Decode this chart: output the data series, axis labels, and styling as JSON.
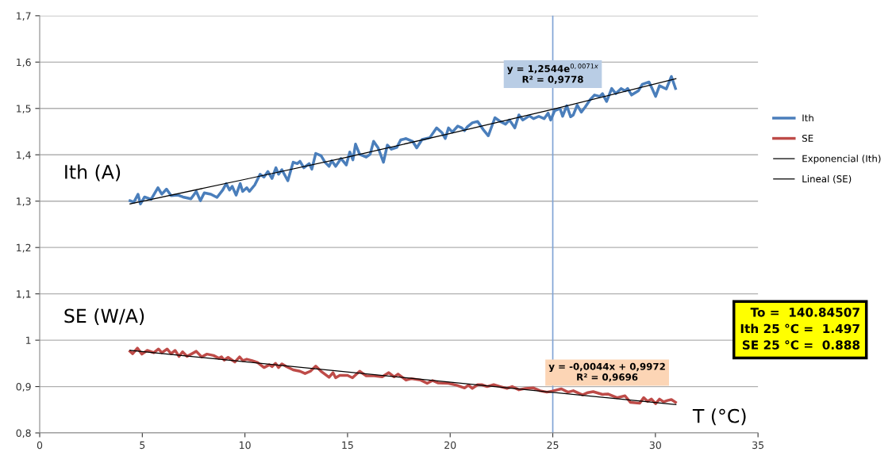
{
  "chart_data": {
    "type": "line",
    "xlabel": "T (°C)",
    "xlim": [
      0,
      35
    ],
    "xticks": [
      0,
      5,
      10,
      15,
      20,
      25,
      30,
      35
    ],
    "ylim": [
      0.8,
      1.7
    ],
    "yticks": [
      {
        "value": 0.8,
        "label": "0,8"
      },
      {
        "value": 0.9,
        "label": "0,9"
      },
      1,
      {
        "value": 1.1,
        "label": "1,1"
      },
      {
        "value": 1.2,
        "label": "1,2"
      },
      {
        "value": 1.3,
        "label": "1,3"
      },
      {
        "value": 1.4,
        "label": "1,4"
      },
      {
        "value": 1.5,
        "label": "1,5"
      },
      {
        "value": 1.6,
        "label": "1,6"
      },
      {
        "value": 1.7,
        "label": "1,7"
      }
    ],
    "grid": "y",
    "legend": "right",
    "marker": "none",
    "series": [
      {
        "name": "Ith",
        "color": "#4a7ebb",
        "x": [
          4.4,
          4.59,
          4.79,
          4.91,
          5.11,
          5.43,
          5.76,
          5.95,
          6.18,
          6.4,
          6.73,
          6.98,
          7.37,
          7.63,
          7.83,
          8.02,
          8.34,
          8.64,
          8.92,
          9.09,
          9.25,
          9.38,
          9.57,
          9.77,
          9.89,
          10.09,
          10.22,
          10.48,
          10.74,
          10.93,
          11.12,
          11.32,
          11.51,
          11.64,
          11.8,
          12.09,
          12.35,
          12.55,
          12.68,
          12.87,
          13.13,
          13.26,
          13.45,
          13.71,
          13.9,
          14.1,
          14.23,
          14.42,
          14.68,
          14.94,
          15.11,
          15.26,
          15.39,
          15.59,
          15.91,
          16.1,
          16.27,
          16.49,
          16.75,
          16.94,
          17.14,
          17.4,
          17.59,
          17.85,
          18.17,
          18.37,
          18.63,
          19.01,
          19.34,
          19.6,
          19.76,
          19.92,
          20.11,
          20.37,
          20.57,
          20.7,
          20.83,
          21.08,
          21.34,
          21.6,
          21.86,
          22.18,
          22.44,
          22.7,
          22.89,
          23.15,
          23.35,
          23.54,
          23.86,
          24.06,
          24.32,
          24.58,
          24.77,
          24.9,
          25.09,
          25.35,
          25.48,
          25.68,
          25.87,
          26.0,
          26.19,
          26.39,
          26.58,
          26.84,
          27.03,
          27.29,
          27.42,
          27.62,
          27.87,
          28.07,
          28.33,
          28.52,
          28.65,
          28.84,
          29.17,
          29.36,
          29.69,
          29.81,
          30.01,
          30.2,
          30.53,
          30.78,
          30.98
        ],
        "values": [
          1.301,
          1.298,
          1.315,
          1.294,
          1.309,
          1.304,
          1.329,
          1.315,
          1.326,
          1.312,
          1.313,
          1.309,
          1.305,
          1.321,
          1.301,
          1.318,
          1.315,
          1.308,
          1.324,
          1.338,
          1.324,
          1.332,
          1.313,
          1.338,
          1.321,
          1.329,
          1.321,
          1.335,
          1.358,
          1.352,
          1.364,
          1.349,
          1.372,
          1.358,
          1.368,
          1.344,
          1.384,
          1.381,
          1.386,
          1.372,
          1.381,
          1.369,
          1.403,
          1.398,
          1.384,
          1.375,
          1.387,
          1.375,
          1.392,
          1.378,
          1.406,
          1.389,
          1.423,
          1.401,
          1.395,
          1.401,
          1.429,
          1.415,
          1.384,
          1.421,
          1.412,
          1.416,
          1.432,
          1.435,
          1.429,
          1.415,
          1.433,
          1.437,
          1.458,
          1.448,
          1.435,
          1.458,
          1.449,
          1.462,
          1.458,
          1.452,
          1.46,
          1.469,
          1.472,
          1.455,
          1.441,
          1.48,
          1.472,
          1.466,
          1.475,
          1.458,
          1.486,
          1.475,
          1.484,
          1.478,
          1.483,
          1.478,
          1.49,
          1.475,
          1.495,
          1.5,
          1.483,
          1.506,
          1.482,
          1.486,
          1.507,
          1.492,
          1.503,
          1.52,
          1.529,
          1.526,
          1.532,
          1.515,
          1.543,
          1.532,
          1.543,
          1.538,
          1.543,
          1.529,
          1.538,
          1.552,
          1.557,
          1.546,
          1.526,
          1.549,
          1.542,
          1.569,
          1.543
        ]
      },
      {
        "name": "SE",
        "color": "#be4b48",
        "x": [
          4.4,
          4.53,
          4.76,
          4.98,
          5.24,
          5.56,
          5.79,
          5.95,
          6.21,
          6.4,
          6.6,
          6.79,
          6.96,
          7.18,
          7.63,
          7.89,
          8.15,
          8.47,
          8.73,
          8.86,
          8.99,
          9.18,
          9.51,
          9.74,
          9.9,
          10.09,
          10.35,
          10.61,
          10.93,
          11.19,
          11.32,
          11.49,
          11.64,
          11.8,
          12.03,
          12.35,
          12.68,
          12.93,
          13.19,
          13.45,
          13.71,
          14.1,
          14.29,
          14.42,
          14.62,
          15.0,
          15.24,
          15.59,
          15.91,
          16.3,
          16.69,
          17.01,
          17.27,
          17.46,
          17.85,
          18.11,
          18.56,
          18.88,
          19.14,
          19.4,
          19.92,
          20.31,
          20.7,
          20.89,
          21.08,
          21.34,
          21.54,
          21.8,
          22.12,
          22.44,
          22.77,
          23.02,
          23.35,
          23.67,
          24.06,
          24.38,
          24.71,
          24.96,
          25.42,
          25.74,
          26.0,
          26.45,
          26.71,
          26.97,
          27.42,
          27.68,
          28.13,
          28.52,
          28.78,
          29.23,
          29.43,
          29.62,
          29.81,
          30.01,
          30.2,
          30.4,
          30.59,
          30.78,
          30.98
        ],
        "values": [
          0.976,
          0.971,
          0.983,
          0.97,
          0.978,
          0.973,
          0.981,
          0.973,
          0.981,
          0.971,
          0.978,
          0.965,
          0.975,
          0.965,
          0.976,
          0.964,
          0.97,
          0.967,
          0.961,
          0.964,
          0.957,
          0.963,
          0.953,
          0.964,
          0.956,
          0.959,
          0.956,
          0.952,
          0.941,
          0.947,
          0.943,
          0.95,
          0.941,
          0.949,
          0.943,
          0.936,
          0.933,
          0.928,
          0.933,
          0.944,
          0.933,
          0.92,
          0.93,
          0.919,
          0.924,
          0.924,
          0.919,
          0.933,
          0.923,
          0.923,
          0.921,
          0.93,
          0.921,
          0.927,
          0.914,
          0.917,
          0.914,
          0.907,
          0.913,
          0.908,
          0.907,
          0.903,
          0.897,
          0.903,
          0.896,
          0.904,
          0.904,
          0.9,
          0.904,
          0.9,
          0.896,
          0.9,
          0.893,
          0.896,
          0.897,
          0.891,
          0.888,
          0.89,
          0.895,
          0.888,
          0.891,
          0.882,
          0.887,
          0.889,
          0.883,
          0.884,
          0.876,
          0.88,
          0.866,
          0.864,
          0.876,
          0.868,
          0.873,
          0.863,
          0.873,
          0.867,
          0.87,
          0.872,
          0.866
        ]
      },
      {
        "name": "Exponencial (Ith)",
        "color": "#000000",
        "x": [
          4.4,
          10,
          15,
          20,
          25,
          31
        ],
        "values": [
          1.294,
          1.347,
          1.395,
          1.446,
          1.498,
          1.564
        ]
      },
      {
        "name": "Lineal (SE)",
        "color": "#000000",
        "x": [
          4.4,
          31
        ],
        "values": [
          0.978,
          0.861
        ]
      }
    ],
    "ref_lines": [
      {
        "axis": "x",
        "value": 25,
        "color": "#7fa3d4"
      }
    ],
    "annotations": [
      "Ith (A)",
      "SE (W/A)",
      {
        "text": "y = 1,2544e$^{0,0071x}$\nR² = 0,9778",
        "x": 25,
        "y": 1.498
      },
      "y = -0,0044x + 0,9972\nR² = 0,9696",
      "To =  140.84507\nIth 25 °C =  1.497\nSE 25 °C =  0.888"
    ]
  }
}
